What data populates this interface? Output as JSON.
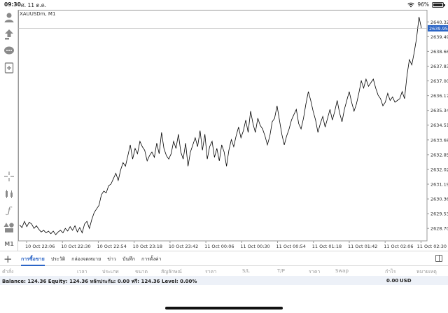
{
  "status_bar": {
    "time": "09:30",
    "date": "ศ. 11 ต.ค.",
    "battery": "96%"
  },
  "chart": {
    "symbol": "XAUUSDm, M1",
    "current_price": "2639.959",
    "colors": {
      "line": "#000000",
      "axis": "#999999",
      "price_badge": "#2a64c6",
      "price_line": "#b0b0b0"
    }
  },
  "left_toolbar": {
    "icons": [
      "account-icon",
      "trade-upload-icon",
      "chat-icon",
      "new-order-icon",
      "crosshair-icon",
      "indicators-icon",
      "function-icon",
      "objects-icon"
    ],
    "timeframe": "M1"
  },
  "tabs": [
    {
      "label": "การซื้อขาย",
      "active": true
    },
    {
      "label": "ประวัติ",
      "active": false
    },
    {
      "label": "กล่องจดหมาย",
      "active": false
    },
    {
      "label": "ข่าว",
      "active": false
    },
    {
      "label": "บันทึก",
      "active": false
    },
    {
      "label": "การตั้งค่า",
      "active": false
    }
  ],
  "columns": {
    "order": "คำสั่ง",
    "time": "เวลา",
    "type": "ประเภท",
    "volume": "ขนาด",
    "symbol": "สัญลักษณ์",
    "price": "ราคา",
    "sl": "S/L",
    "tp": "T/P",
    "current_price": "ราคา",
    "swap": "Swap",
    "profit": "กำไร",
    "comment": "หมายเหตุ"
  },
  "balance": {
    "text": "Balance: 124.36 Equity: 124.36 หลักประกัน: 0.00 ฟรี: 124.36 Level: 0.00%",
    "profit": "0.00",
    "currency": "USD"
  },
  "chart_data": {
    "type": "line",
    "title": "XAUUSDm, M1",
    "xlabel": "",
    "ylabel": "",
    "ylim": [
      2628.0,
      2641.0
    ],
    "y_ticks": [
      "2640.320",
      "2639.490",
      "2638.660",
      "2637.830",
      "2637.000",
      "2636.170",
      "2635.340",
      "2634.510",
      "2633.680",
      "2632.850",
      "2632.020",
      "2631.190",
      "2630.360",
      "2629.530",
      "2628.700"
    ],
    "x_ticks": [
      "10 Oct 22:06",
      "10 Oct 22:30",
      "10 Oct 22:54",
      "10 Oct 23:18",
      "10 Oct 23:42",
      "11 Oct 00:06",
      "11 Oct 00:30",
      "11 Oct 00:54",
      "11 Oct 01:18",
      "11 Oct 01:42",
      "11 Oct 02:06",
      "11 Oct 02:30"
    ],
    "grid": false,
    "series": [
      {
        "values": [
          2628.9,
          2628.75,
          2629.1,
          2628.8,
          2629.05,
          2628.95,
          2628.7,
          2628.85,
          2628.65,
          2628.5,
          2628.6,
          2628.45,
          2628.55,
          2628.4,
          2628.55,
          2628.35,
          2628.5,
          2628.6,
          2628.45,
          2628.7,
          2628.55,
          2628.8,
          2628.6,
          2628.85,
          2628.5,
          2628.75,
          2628.45,
          2628.95,
          2629.1,
          2628.7,
          2629.2,
          2629.6,
          2629.8,
          2630.0,
          2630.6,
          2630.8,
          2630.7,
          2631.1,
          2631.2,
          2631.5,
          2631.8,
          2631.4,
          2632.0,
          2632.4,
          2632.2,
          2632.8,
          2633.4,
          2632.6,
          2633.2,
          2632.9,
          2633.6,
          2633.3,
          2633.1,
          2632.5,
          2632.8,
          2633.0,
          2632.7,
          2633.5,
          2632.9,
          2634.1,
          2633.2,
          2632.8,
          2632.6,
          2632.9,
          2633.6,
          2633.2,
          2634.0,
          2633.0,
          2632.6,
          2633.5,
          2632.2,
          2633.0,
          2633.4,
          2633.8,
          2633.3,
          2634.2,
          2633.1,
          2634.0,
          2632.6,
          2633.3,
          2633.6,
          2632.7,
          2633.2,
          2632.5,
          2633.4,
          2633.0,
          2632.2,
          2633.1,
          2633.7,
          2633.3,
          2633.9,
          2634.4,
          2633.8,
          2634.2,
          2634.8,
          2634.1,
          2635.3,
          2634.6,
          2634.1,
          2634.9,
          2634.5,
          2634.3,
          2633.9,
          2633.4,
          2633.9,
          2634.7,
          2634.9,
          2635.6,
          2634.8,
          2634.0,
          2633.4,
          2633.9,
          2634.3,
          2634.8,
          2635.1,
          2635.4,
          2634.6,
          2634.3,
          2634.9,
          2635.7,
          2636.4,
          2635.9,
          2635.3,
          2634.8,
          2634.1,
          2634.6,
          2635.0,
          2634.4,
          2634.9,
          2635.4,
          2634.8,
          2635.3,
          2635.9,
          2635.2,
          2634.7,
          2635.4,
          2635.9,
          2636.4,
          2635.8,
          2635.3,
          2635.7,
          2636.3,
          2637.0,
          2636.6,
          2637.1,
          2636.7,
          2636.9,
          2637.1,
          2636.6,
          2636.2,
          2636.0,
          2635.6,
          2635.8,
          2636.3,
          2635.9,
          2636.1,
          2635.8,
          2635.9,
          2636.0,
          2636.4,
          2636.0,
          2637.3,
          2638.2,
          2637.9,
          2638.6,
          2639.4,
          2640.6,
          2639.96
        ]
      }
    ]
  }
}
